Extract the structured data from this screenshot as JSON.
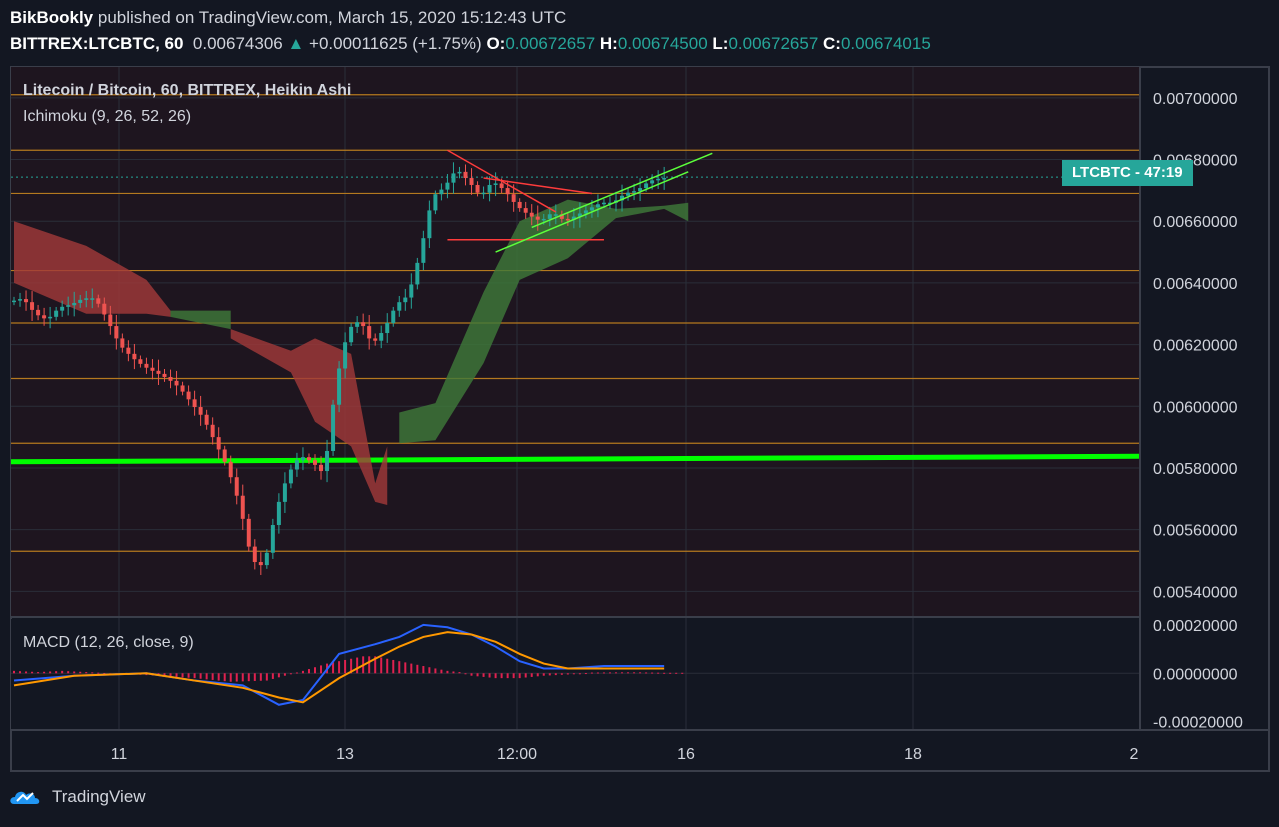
{
  "header": {
    "author": "BikBookly",
    "published_text": "published on TradingView.com, March 15, 2020 15:12:43 UTC",
    "symbol": "BITTREX:LTCBTC, 60",
    "price": "0.00674306",
    "change": "+0.00011625 (+1.75%)",
    "o_label": "O:",
    "o_value": "0.00672657",
    "h_label": "H:",
    "h_value": "0.00674500",
    "l_label": "L:",
    "l_value": "0.00672657",
    "c_label": "C:",
    "c_value": "0.00674015"
  },
  "legend": {
    "title": "Litecoin / Bitcoin, 60, BITTREX, Heikin Ashi",
    "ichimoku": "Ichimoku (9, 26, 52, 26)",
    "macd": "MACD (12, 26, close, 9)"
  },
  "price_badge": {
    "symbol": "LTCBTC",
    "countdown": "47:19"
  },
  "brand": {
    "name": "TradingView"
  },
  "colors": {
    "up": "#26a69a",
    "down": "#ef5350",
    "cloud_bull": "#3e7a3a",
    "cloud_bear": "#a33a3a",
    "support_line": "#00ff00",
    "level_line": "#b4791f",
    "macd_line": "#2962ff",
    "signal_line": "#ff9800"
  },
  "chart_data": [
    {
      "type": "candlestick",
      "title": "Litecoin / Bitcoin, 60, BITTREX, Heikin Ashi",
      "y_ticks": [
        "0.00700000",
        "0.00680000",
        "0.00660000",
        "0.00640000",
        "0.00620000",
        "0.00600000",
        "0.00580000",
        "0.00560000",
        "0.00540000"
      ],
      "ylim": [
        0.00532,
        0.0071
      ],
      "x_ticks": [
        "11",
        "13",
        "12:00",
        "16",
        "18",
        "2"
      ],
      "last_price": 0.00674306,
      "horizontal_levels": [
        0.00701,
        0.00683,
        0.00669,
        0.00644,
        0.00627,
        0.00609,
        0.00588,
        0.00553
      ],
      "support_line": {
        "start": 0.00582,
        "end": 0.005838
      },
      "price_path": [
        [
          0,
          0.00634
        ],
        [
          2,
          0.00635
        ],
        [
          4,
          0.0063
        ],
        [
          6,
          0.00628
        ],
        [
          8,
          0.00632
        ],
        [
          10,
          0.00633
        ],
        [
          12,
          0.00635
        ],
        [
          14,
          0.00635
        ],
        [
          16,
          0.00628
        ],
        [
          18,
          0.0062
        ],
        [
          20,
          0.00616
        ],
        [
          22,
          0.00613
        ],
        [
          24,
          0.00611
        ],
        [
          26,
          0.00609
        ],
        [
          28,
          0.00606
        ],
        [
          30,
          0.00601
        ],
        [
          32,
          0.00596
        ],
        [
          34,
          0.00588
        ],
        [
          36,
          0.0058
        ],
        [
          38,
          0.00568
        ],
        [
          40,
          0.0055
        ],
        [
          42,
          0.00548
        ],
        [
          44,
          0.00566
        ],
        [
          46,
          0.00578
        ],
        [
          48,
          0.00584
        ],
        [
          50,
          0.00582
        ],
        [
          52,
          0.00578
        ],
        [
          54,
          0.00608
        ],
        [
          56,
          0.00625
        ],
        [
          58,
          0.00628
        ],
        [
          60,
          0.0062
        ],
        [
          62,
          0.00625
        ],
        [
          64,
          0.00633
        ],
        [
          66,
          0.00636
        ],
        [
          68,
          0.0065
        ],
        [
          70,
          0.00668
        ],
        [
          72,
          0.00671
        ],
        [
          74,
          0.00677
        ],
        [
          76,
          0.00673
        ],
        [
          78,
          0.00668
        ],
        [
          80,
          0.00673
        ],
        [
          82,
          0.0067
        ],
        [
          84,
          0.00665
        ],
        [
          86,
          0.00662
        ],
        [
          88,
          0.0066
        ],
        [
          90,
          0.00663
        ],
        [
          92,
          0.0066
        ],
        [
          94,
          0.00662
        ],
        [
          96,
          0.00664
        ],
        [
          98,
          0.00666
        ],
        [
          100,
          0.00666
        ],
        [
          102,
          0.00669
        ],
        [
          104,
          0.0067
        ],
        [
          106,
          0.00673
        ],
        [
          108,
          0.00674
        ]
      ],
      "ichimoku_cloud": [
        {
          "kind": "bearish",
          "points": [
            [
              0,
              0.0066,
              0.0064
            ],
            [
              12,
              0.00652,
              0.0063
            ],
            [
              22,
              0.00641,
              0.0063
            ],
            [
              26,
              0.00629,
              0.00631
            ]
          ]
        },
        {
          "kind": "bullish",
          "points": [
            [
              26,
              0.00629,
              0.00631
            ],
            [
              36,
              0.00631,
              0.00625
            ]
          ]
        },
        {
          "kind": "bearish",
          "points": [
            [
              36,
              0.00622,
              0.00625
            ],
            [
              46,
              0.00618,
              0.00611
            ],
            [
              50,
              0.00622,
              0.00595
            ],
            [
              56,
              0.00617,
              0.00587
            ],
            [
              60,
              0.00569,
              0.00575
            ],
            [
              62,
              0.00568,
              0.00587
            ]
          ]
        },
        {
          "kind": "bullish",
          "points": [
            [
              64,
              0.00588,
              0.00598
            ],
            [
              70,
              0.00589,
              0.00601
            ],
            [
              78,
              0.00614,
              0.00637
            ],
            [
              84,
              0.00641,
              0.0066
            ],
            [
              92,
              0.00648,
              0.00667
            ],
            [
              100,
              0.00664,
              0.00661
            ],
            [
              108,
              0.00665,
              0.00664
            ],
            [
              112,
              0.00666,
              0.0066
            ]
          ]
        }
      ],
      "trendlines": [
        {
          "color": "red",
          "from": [
            72,
            0.00683
          ],
          "to": [
            90,
            0.00663
          ]
        },
        {
          "color": "red",
          "from": [
            78,
            0.00674
          ],
          "to": [
            96,
            0.00669
          ]
        },
        {
          "color": "red",
          "from": [
            72,
            0.00654
          ],
          "to": [
            98,
            0.00654
          ]
        },
        {
          "color": "green",
          "from": [
            80,
            0.0065
          ],
          "to": [
            112,
            0.00676
          ]
        },
        {
          "color": "green",
          "from": [
            86,
            0.00658
          ],
          "to": [
            116,
            0.00682
          ]
        }
      ]
    },
    {
      "type": "line",
      "title": "MACD (12, 26, close, 9)",
      "y_ticks": [
        "0.00020000",
        "0.00000000",
        "-0.00020000"
      ],
      "ylim": [
        -0.00023,
        0.00022
      ],
      "series": [
        {
          "values": [
            [
              0,
              -3e-05
            ],
            [
              10,
              -1e-05
            ],
            [
              22,
              0.0
            ],
            [
              30,
              -3e-05
            ],
            [
              38,
              -5e-05
            ],
            [
              44,
              -0.00013
            ],
            [
              48,
              -0.00011
            ],
            [
              54,
              8e-05
            ],
            [
              60,
              0.00012
            ],
            [
              64,
              0.00015
            ],
            [
              68,
              0.0002
            ],
            [
              72,
              0.00019
            ],
            [
              76,
              0.00016
            ],
            [
              80,
              0.00011
            ],
            [
              84,
              5e-05
            ],
            [
              88,
              2e-05
            ],
            [
              92,
              2e-05
            ],
            [
              98,
              3e-05
            ],
            [
              104,
              3e-05
            ],
            [
              108,
              3e-05
            ]
          ]
        },
        {
          "values": [
            [
              0,
              -5e-05
            ],
            [
              10,
              -1e-05
            ],
            [
              22,
              0.0
            ],
            [
              30,
              -3e-05
            ],
            [
              38,
              -6e-05
            ],
            [
              44,
              -0.0001
            ],
            [
              48,
              -0.00012
            ],
            [
              54,
              -2e-05
            ],
            [
              60,
              6e-05
            ],
            [
              64,
              0.00011
            ],
            [
              68,
              0.00015
            ],
            [
              72,
              0.00017
            ],
            [
              76,
              0.00016
            ],
            [
              80,
              0.00013
            ],
            [
              84,
              8e-05
            ],
            [
              88,
              4e-05
            ],
            [
              92,
              2e-05
            ],
            [
              98,
              2e-05
            ],
            [
              104,
              2e-05
            ],
            [
              108,
              2e-05
            ]
          ]
        }
      ],
      "histogram": [
        [
          0,
          1e-05
        ],
        [
          4,
          5e-06
        ],
        [
          8,
          1e-05
        ],
        [
          12,
          5e-06
        ],
        [
          16,
          0.0
        ],
        [
          20,
          -5e-06
        ],
        [
          24,
          -1e-05
        ],
        [
          30,
          -2e-05
        ],
        [
          36,
          -3.5e-05
        ],
        [
          42,
          -3e-05
        ],
        [
          48,
          1e-05
        ],
        [
          52,
          4e-05
        ],
        [
          56,
          6e-05
        ],
        [
          58,
          7e-05
        ],
        [
          60,
          7e-05
        ],
        [
          62,
          6e-05
        ],
        [
          64,
          5e-05
        ],
        [
          66,
          4e-05
        ],
        [
          68,
          3e-05
        ],
        [
          70,
          2e-05
        ],
        [
          72,
          1e-05
        ],
        [
          74,
          5e-06
        ],
        [
          76,
          -1e-05
        ],
        [
          80,
          -2e-05
        ],
        [
          84,
          -2e-05
        ],
        [
          88,
          -1e-05
        ],
        [
          92,
          -5e-06
        ],
        [
          96,
          3e-06
        ],
        [
          100,
          4e-06
        ],
        [
          104,
          4e-06
        ],
        [
          108,
          2e-06
        ]
      ]
    }
  ]
}
